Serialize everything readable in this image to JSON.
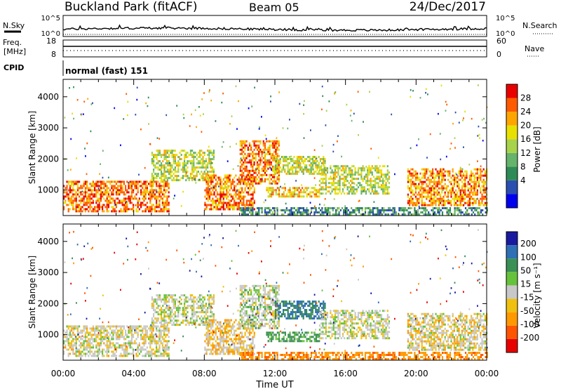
{
  "header": {
    "station": "Buckland Park (fitACF)",
    "beam": "Beam 05",
    "date": "24/Dec/2017"
  },
  "noise_panel": {
    "left_label": "N.Sky",
    "right_label": "N.Search",
    "tick_top": "10^5",
    "tick_bottom": "10^0"
  },
  "freq_panel": {
    "label_line1": "Freq.",
    "label_line2": "[MHz]",
    "right_label": "Nave",
    "left_ticks": [
      "18",
      "8"
    ],
    "right_ticks": [
      "60",
      "0"
    ]
  },
  "cpid_panel": {
    "label": "CPID",
    "mode_text": "normal (fast) 151"
  },
  "range_axis": {
    "label": "Slant Range [km]",
    "ticks": [
      "4000",
      "3000",
      "2000",
      "1000"
    ]
  },
  "time_axis": {
    "label": "Time UT",
    "ticks": [
      "00:00",
      "04:00",
      "08:00",
      "12:00",
      "16:00",
      "20:00",
      "00:00"
    ]
  },
  "power_scale": {
    "label": "Power [dB]",
    "ticks": [
      "28",
      "24",
      "20",
      "16",
      "12",
      "8",
      "4"
    ]
  },
  "velocity_scale": {
    "label": "Velocity [m s⁻¹]",
    "ticks": [
      "200",
      "100",
      "50",
      "15",
      "-15",
      "-50",
      "-100",
      "-200"
    ]
  },
  "colors": {
    "power": [
      "#0000ee",
      "#2b4fb0",
      "#2e8b57",
      "#66b36b",
      "#a8d24a",
      "#e8e000",
      "#ffa500",
      "#ff5a00",
      "#e80000"
    ],
    "velocity": [
      "#1a1aa0",
      "#2e6fb5",
      "#3a8f55",
      "#66c23a",
      "#c8c8c8",
      "#f0c010",
      "#ff9900",
      "#ff5500",
      "#e80000"
    ]
  },
  "chart_data": [
    {
      "type": "heatmap",
      "title": "Power [dB]",
      "xlabel": "Time UT",
      "ylabel": "Slant Range [km]",
      "x_range_hours": [
        0,
        24
      ],
      "y_range_km": [
        180,
        4560
      ],
      "color_range": [
        0,
        32
      ],
      "echo_regions": [
        {
          "t0": 0.0,
          "t1": 6.0,
          "r0": 350,
          "r1": 1300,
          "level": 27
        },
        {
          "t0": 5.0,
          "t1": 8.5,
          "r0": 1300,
          "r1": 2300,
          "level": 17
        },
        {
          "t0": 8.0,
          "t1": 10.8,
          "r0": 400,
          "r1": 1500,
          "level": 26
        },
        {
          "t0": 10.0,
          "t1": 12.2,
          "r0": 1200,
          "r1": 2600,
          "level": 26
        },
        {
          "t0": 11.5,
          "t1": 14.5,
          "r0": 800,
          "r1": 1100,
          "level": 22
        },
        {
          "t0": 12.0,
          "t1": 14.8,
          "r0": 1500,
          "r1": 2100,
          "level": 18
        },
        {
          "t0": 14.5,
          "t1": 18.5,
          "r0": 900,
          "r1": 1800,
          "level": 17
        },
        {
          "t0": 19.5,
          "t1": 24.0,
          "r0": 500,
          "r1": 1700,
          "level": 25
        },
        {
          "t0": 10.0,
          "t1": 24.0,
          "r0": 200,
          "r1": 450,
          "level": 9
        }
      ]
    },
    {
      "type": "heatmap",
      "title": "Velocity [m s⁻¹]",
      "xlabel": "Time UT",
      "ylabel": "Slant Range [km]",
      "x_range_hours": [
        0,
        24
      ],
      "y_range_km": [
        180,
        4560
      ],
      "color_range": [
        -200,
        200
      ],
      "echo_regions": [
        {
          "t0": 0.0,
          "t1": 6.0,
          "r0": 350,
          "r1": 1300,
          "level": -5
        },
        {
          "t0": 5.0,
          "t1": 8.5,
          "r0": 1300,
          "r1": 2300,
          "level": 0
        },
        {
          "t0": 8.0,
          "t1": 10.8,
          "r0": 400,
          "r1": 1500,
          "level": -20
        },
        {
          "t0": 10.0,
          "t1": 12.2,
          "r0": 1200,
          "r1": 2600,
          "level": 5
        },
        {
          "t0": 11.5,
          "t1": 14.5,
          "r0": 800,
          "r1": 1100,
          "level": 40
        },
        {
          "t0": 12.0,
          "t1": 14.8,
          "r0": 1500,
          "r1": 2100,
          "level": 80
        },
        {
          "t0": 14.5,
          "t1": 18.5,
          "r0": 900,
          "r1": 1800,
          "level": 0
        },
        {
          "t0": 19.5,
          "t1": 24.0,
          "r0": 500,
          "r1": 1700,
          "level": -10
        },
        {
          "t0": 10.0,
          "t1": 24.0,
          "r0": 200,
          "r1": 450,
          "level": -60
        }
      ]
    }
  ]
}
